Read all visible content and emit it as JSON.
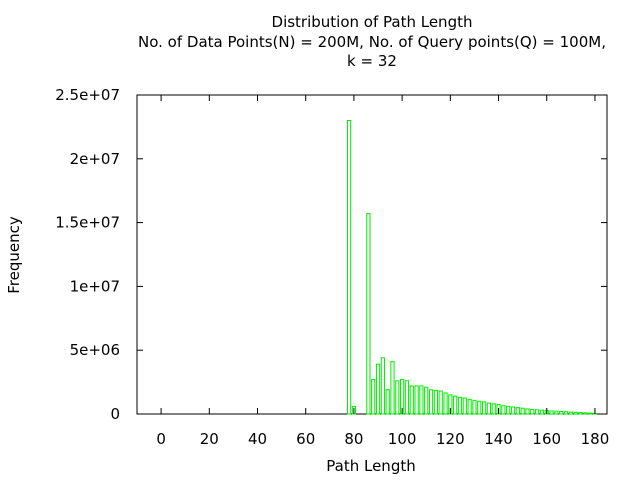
{
  "chart_data": {
    "type": "bar",
    "title_lines": [
      "Distribution of Path Length",
      "No. of Data Points(N) = 200M,  No. of Query points(Q) = 100M,",
      "k = 32"
    ],
    "xlabel": "Path Length",
    "ylabel": "Frequency",
    "xlim": [
      -10,
      185
    ],
    "ylim": [
      0,
      25000000
    ],
    "x_ticks": [
      0,
      20,
      40,
      60,
      80,
      100,
      120,
      140,
      160,
      180
    ],
    "y_ticks": [
      0,
      5000000,
      10000000,
      15000000,
      20000000,
      25000000
    ],
    "y_tick_labels": [
      "0",
      "5e+06",
      "1e+07",
      "1.5e+07",
      "2e+07",
      "2.5e+07"
    ],
    "grid": false,
    "legend": "none",
    "bar_color": "#00ee00",
    "series": [
      {
        "x": [
          78,
          80,
          86,
          88,
          90,
          92,
          94,
          96,
          98,
          100,
          102,
          104,
          106,
          108,
          110,
          112,
          114,
          116,
          118,
          120,
          122,
          124,
          126,
          128,
          130,
          132,
          134,
          136,
          138,
          140,
          142,
          144,
          146,
          148,
          150,
          152,
          154,
          156,
          158,
          160,
          162,
          164,
          166,
          168,
          170,
          172,
          174,
          176,
          178,
          180
        ],
        "values": [
          23000000,
          600000,
          15700000,
          2700000,
          3900000,
          4400000,
          1900000,
          4100000,
          2600000,
          2700000,
          2600000,
          2200000,
          2200000,
          2200000,
          2100000,
          1900000,
          1850000,
          1800000,
          1650000,
          1500000,
          1400000,
          1300000,
          1250000,
          1150000,
          1050000,
          1000000,
          950000,
          850000,
          800000,
          750000,
          650000,
          600000,
          550000,
          500000,
          450000,
          400000,
          350000,
          330000,
          300000,
          270000,
          240000,
          220000,
          200000,
          180000,
          150000,
          130000,
          110000,
          90000,
          70000,
          50000
        ]
      }
    ]
  }
}
